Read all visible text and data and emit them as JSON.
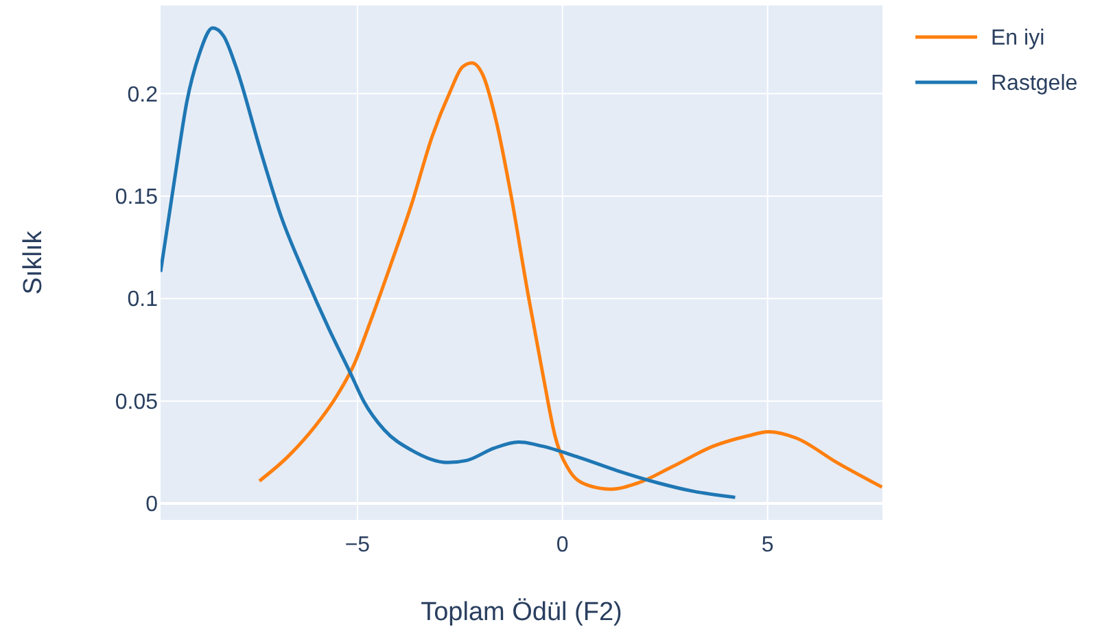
{
  "chart_data": {
    "type": "line",
    "xlabel": "Toplam Ödül (F2)",
    "ylabel": "Sıklık",
    "xlim": [
      -9.8,
      7.8
    ],
    "ylim": [
      -0.008,
      0.243
    ],
    "xticks": [
      {
        "value": -5,
        "label": "−5"
      },
      0,
      5
    ],
    "yticks": [
      0,
      0.05,
      0.1,
      0.15,
      0.2
    ],
    "grid": true,
    "legend": "top right",
    "marker": "none",
    "line_style": "solid",
    "series": [
      {
        "name": "En iyi",
        "color": "#ff7f0e",
        "x": [
          -7.39,
          -6.69,
          -6.02,
          -5.52,
          -5.08,
          -4.68,
          -4.18,
          -3.68,
          -3.18,
          -2.74,
          -2.44,
          -2.21,
          -1.94,
          -1.61,
          -1.27,
          -0.84,
          -0.47,
          -0.17,
          0.17,
          0.6,
          1.17,
          1.84,
          2.68,
          3.68,
          4.52,
          5.02,
          5.69,
          6.69,
          7.79
        ],
        "values": [
          0.011,
          0.023,
          0.038,
          0.052,
          0.068,
          0.089,
          0.117,
          0.146,
          0.179,
          0.201,
          0.213,
          0.215,
          0.209,
          0.186,
          0.152,
          0.102,
          0.062,
          0.032,
          0.016,
          0.009,
          0.007,
          0.01,
          0.018,
          0.028,
          0.033,
          0.035,
          0.032,
          0.02,
          0.008
        ]
      },
      {
        "name": "Rastgele",
        "color": "#1f77b4",
        "x": [
          -9.8,
          -9.43,
          -9.16,
          -8.86,
          -8.53,
          -8.26,
          -7.96,
          -7.36,
          -6.86,
          -6.29,
          -5.69,
          -5.18,
          -4.85,
          -4.35,
          -3.68,
          -2.81,
          -2.34,
          -1.67,
          -1.07,
          -0.5,
          0.33,
          1.34,
          2.34,
          3.18,
          4.21
        ],
        "values": [
          0.113,
          0.162,
          0.196,
          0.219,
          0.232,
          0.228,
          0.213,
          0.172,
          0.14,
          0.112,
          0.085,
          0.064,
          0.05,
          0.036,
          0.026,
          0.02,
          0.021,
          0.027,
          0.03,
          0.028,
          0.023,
          0.016,
          0.01,
          0.006,
          0.003
        ]
      }
    ]
  }
}
